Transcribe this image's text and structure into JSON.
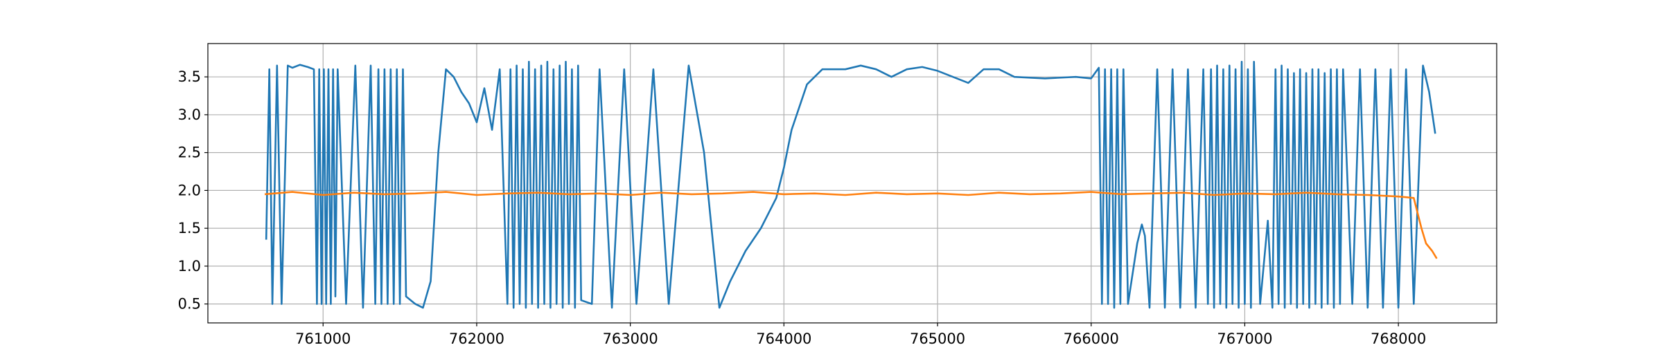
{
  "chart_data": {
    "type": "line",
    "xlim": [
      760250,
      768640
    ],
    "ylim": [
      0.25,
      3.94
    ],
    "xticks": [
      761000,
      762000,
      763000,
      764000,
      765000,
      766000,
      767000,
      768000
    ],
    "yticks": [
      0.5,
      {
        "value": 1,
        "label": "1.0"
      },
      1.5,
      {
        "value": 2,
        "label": "2.0"
      },
      2.5,
      {
        "value": 3,
        "label": "3.0"
      },
      3.5
    ],
    "grid": true,
    "series": [
      {
        "color": "#1f77b4",
        "x": [
          760630,
          760650,
          760670,
          760700,
          760730,
          760770,
          760800,
          760850,
          760900,
          760940,
          760960,
          760975,
          760990,
          761005,
          761020,
          761035,
          761050,
          761065,
          761080,
          761095,
          761150,
          761210,
          761260,
          761310,
          761340,
          761360,
          761380,
          761400,
          761420,
          761440,
          761460,
          761480,
          761500,
          761520,
          761540,
          761600,
          761650,
          761700,
          761750,
          761800,
          761850,
          761900,
          761950,
          762000,
          762050,
          762100,
          762150,
          762200,
          762220,
          762240,
          762260,
          762280,
          762300,
          762320,
          762340,
          762360,
          762380,
          762400,
          762420,
          762440,
          762460,
          762480,
          762500,
          762520,
          762540,
          762560,
          762580,
          762600,
          762620,
          762640,
          762660,
          762680,
          762750,
          762800,
          762880,
          762960,
          763040,
          763150,
          763250,
          763380,
          763480,
          763580,
          763650,
          763750,
          763850,
          763950,
          764000,
          764050,
          764150,
          764250,
          764400,
          764500,
          764600,
          764700,
          764800,
          764900,
          765000,
          765100,
          765200,
          765300,
          765400,
          765500,
          765700,
          765900,
          766000,
          766050,
          766070,
          766090,
          766110,
          766130,
          766150,
          766170,
          766190,
          766210,
          766240,
          766300,
          766330,
          766350,
          766380,
          766430,
          766480,
          766530,
          766580,
          766630,
          766680,
          766730,
          766760,
          766780,
          766800,
          766820,
          766840,
          766860,
          766880,
          766900,
          766920,
          766940,
          766960,
          766980,
          767000,
          767020,
          767040,
          767060,
          767100,
          767150,
          767180,
          767200,
          767220,
          767240,
          767260,
          767280,
          767300,
          767320,
          767340,
          767360,
          767380,
          767400,
          767420,
          767440,
          767460,
          767480,
          767500,
          767520,
          767540,
          767560,
          767580,
          767600,
          767620,
          767640,
          767700,
          767750,
          767800,
          767850,
          767900,
          767950,
          768000,
          768050,
          768100,
          768160,
          768200,
          768240
        ],
        "values": [
          1.35,
          3.6,
          0.5,
          3.65,
          0.5,
          3.65,
          3.62,
          3.66,
          3.63,
          3.6,
          0.5,
          3.6,
          0.5,
          3.6,
          0.5,
          3.6,
          0.5,
          3.6,
          0.6,
          3.6,
          0.5,
          3.65,
          0.45,
          3.65,
          0.5,
          3.6,
          0.5,
          3.6,
          0.5,
          3.6,
          0.5,
          3.6,
          0.5,
          3.6,
          0.6,
          0.5,
          0.45,
          0.8,
          2.5,
          3.6,
          3.5,
          3.3,
          3.15,
          2.9,
          3.35,
          2.8,
          3.6,
          0.5,
          3.6,
          0.45,
          3.65,
          0.5,
          3.6,
          0.45,
          3.7,
          0.5,
          3.6,
          0.45,
          3.65,
          0.5,
          3.7,
          0.45,
          3.6,
          0.5,
          3.65,
          0.45,
          3.7,
          0.5,
          3.6,
          0.45,
          3.65,
          0.55,
          0.5,
          3.6,
          0.45,
          3.6,
          0.5,
          3.6,
          0.5,
          3.65,
          2.5,
          0.45,
          0.8,
          1.2,
          1.5,
          1.9,
          2.3,
          2.8,
          3.4,
          3.6,
          3.6,
          3.65,
          3.6,
          3.5,
          3.6,
          3.63,
          3.58,
          3.5,
          3.42,
          3.6,
          3.6,
          3.5,
          3.48,
          3.5,
          3.48,
          3.62,
          0.5,
          3.6,
          0.5,
          3.6,
          0.45,
          3.6,
          0.5,
          3.6,
          0.5,
          1.3,
          1.55,
          1.4,
          0.45,
          3.6,
          0.45,
          3.6,
          0.45,
          3.6,
          0.45,
          3.6,
          0.5,
          3.6,
          0.45,
          3.65,
          0.5,
          3.6,
          0.45,
          3.65,
          0.5,
          3.6,
          0.45,
          3.7,
          0.5,
          3.6,
          0.45,
          3.7,
          0.5,
          1.6,
          0.45,
          3.6,
          0.5,
          3.65,
          0.45,
          3.6,
          0.5,
          3.55,
          0.45,
          3.6,
          0.5,
          3.55,
          0.45,
          3.6,
          0.5,
          3.6,
          0.45,
          3.55,
          0.5,
          3.6,
          0.45,
          3.6,
          0.5,
          3.6,
          0.5,
          3.6,
          0.45,
          3.6,
          0.45,
          3.6,
          0.45,
          3.6,
          0.5,
          3.65,
          3.3,
          2.75
        ]
      },
      {
        "color": "#ff7f0e",
        "x": [
          760620,
          760800,
          761000,
          761200,
          761400,
          761600,
          761800,
          762000,
          762200,
          762400,
          762600,
          762800,
          763000,
          763200,
          763400,
          763600,
          763800,
          764000,
          764200,
          764400,
          764600,
          764800,
          765000,
          765200,
          765400,
          765600,
          765800,
          766000,
          766200,
          766400,
          766600,
          766800,
          767000,
          767200,
          767400,
          767600,
          767800,
          768000,
          768100,
          768150,
          768180,
          768220,
          768250
        ],
        "values": [
          1.95,
          1.98,
          1.94,
          1.97,
          1.95,
          1.96,
          1.98,
          1.94,
          1.96,
          1.97,
          1.95,
          1.96,
          1.94,
          1.97,
          1.95,
          1.96,
          1.98,
          1.95,
          1.96,
          1.94,
          1.97,
          1.95,
          1.96,
          1.94,
          1.97,
          1.95,
          1.96,
          1.98,
          1.95,
          1.96,
          1.97,
          1.94,
          1.96,
          1.95,
          1.97,
          1.95,
          1.94,
          1.92,
          1.9,
          1.5,
          1.3,
          1.2,
          1.1
        ]
      }
    ]
  }
}
